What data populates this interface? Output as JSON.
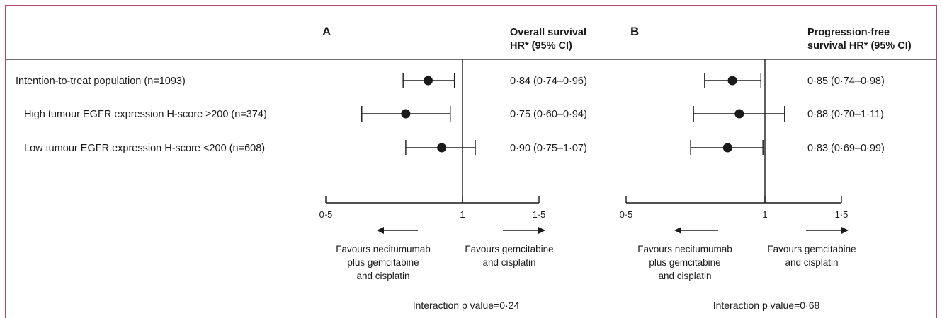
{
  "colors": {
    "border": "#b0476a",
    "ink": "#1a1a1a"
  },
  "rows": [
    {
      "label": "Intention-to-treat population (n=1093)",
      "indent": false
    },
    {
      "label": "High tumour EGFR expression H-score ≥200 (n=374)",
      "indent": true
    },
    {
      "label": "Low tumour EGFR expression H-score <200 (n=608)",
      "indent": true
    }
  ],
  "chart_data": [
    {
      "type": "forest",
      "panel_label": "A",
      "column_header": [
        "Overall survival",
        "HR* (95% CI)"
      ],
      "reference_line": 1,
      "xlim": [
        0.5,
        1.5
      ],
      "x_ticks": [
        {
          "value": 0.5,
          "label": "0·5"
        },
        {
          "value": 1,
          "label": "1"
        },
        {
          "value": 1.5,
          "label": "1·5"
        }
      ],
      "points": [
        {
          "hr": 0.84,
          "lo": 0.74,
          "hi": 0.96,
          "text": "0·84 (0·74–0·96)"
        },
        {
          "hr": 0.75,
          "lo": 0.6,
          "hi": 0.94,
          "text": "0·75 (0·60–0·94)"
        },
        {
          "hr": 0.9,
          "lo": 0.75,
          "hi": 1.07,
          "text": "0·90 (0·75–1·07)"
        }
      ],
      "favours_left": [
        "Favours necitumumab",
        "plus gemcitabine",
        "and cisplatin"
      ],
      "favours_right": [
        "Favours gemcitabine",
        "and cisplatin"
      ],
      "interaction": "Interaction p value=0·24"
    },
    {
      "type": "forest",
      "panel_label": "B",
      "column_header": [
        "Progression-free",
        "survival  HR* (95% CI)"
      ],
      "reference_line": 1,
      "xlim": [
        0.5,
        1.5
      ],
      "x_ticks": [
        {
          "value": 0.5,
          "label": "0·5"
        },
        {
          "value": 1,
          "label": "1"
        },
        {
          "value": 1.5,
          "label": "1·5"
        }
      ],
      "points": [
        {
          "hr": 0.85,
          "lo": 0.74,
          "hi": 0.98,
          "text": "0·85 (0·74–0·98)"
        },
        {
          "hr": 0.88,
          "lo": 0.7,
          "hi": 1.11,
          "text": "0·88 (0·70–1·11)"
        },
        {
          "hr": 0.83,
          "lo": 0.69,
          "hi": 0.99,
          "text": "0·83 (0·69–0·99)"
        }
      ],
      "favours_left": [
        "Favours necitumumab",
        "plus gemcitabine",
        "and cisplatin"
      ],
      "favours_right": [
        "Favours gemcitabine",
        "and cisplatin"
      ],
      "interaction": "Interaction p value=0·68"
    }
  ]
}
